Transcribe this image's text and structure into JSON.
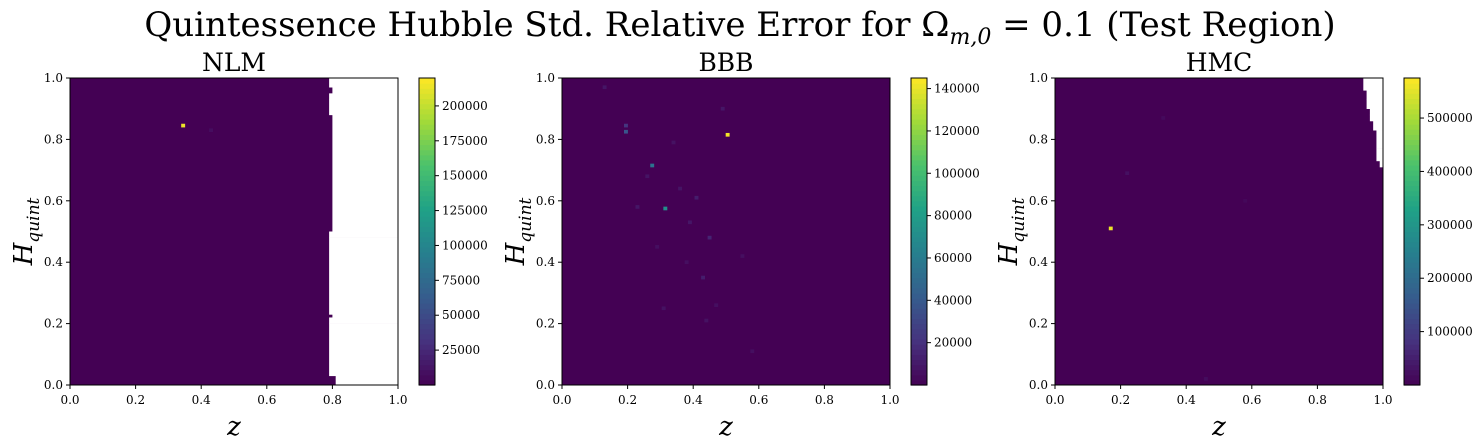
{
  "figure": {
    "title": "Quintessence Hubble Std. Relative Error for Ω",
    "title_sub": "m,0",
    "title_tail": " = 0.1 (Test Region)"
  },
  "colormap": [
    "#440154",
    "#46327e",
    "#365c8d",
    "#277f8e",
    "#1fa187",
    "#4ac16d",
    "#a0da39",
    "#fde725"
  ],
  "chart_data": [
    {
      "type": "heatmap",
      "title": "NLM",
      "xlabel": "z",
      "ylabel": "H",
      "ylabel_sub": "quint",
      "xlim": [
        0,
        1
      ],
      "ylim": [
        0,
        1
      ],
      "x_ticks": [
        "0.0",
        "0.2",
        "0.4",
        "0.6",
        "0.8",
        "1.0"
      ],
      "y_ticks": [
        "0.0",
        "0.2",
        "0.4",
        "0.6",
        "0.8",
        "1.0"
      ],
      "colorbar": {
        "min": 0,
        "max": 220000,
        "ticks": [
          25000,
          50000,
          75000,
          100000,
          125000,
          150000,
          175000,
          200000
        ],
        "tick_labels": [
          "25000",
          "50000",
          "75000",
          "100000",
          "125000",
          "150000",
          "175000",
          "200000"
        ]
      },
      "background_value": 0,
      "nan_region": {
        "y": [
          0.0,
          0.02,
          0.03,
          0.2,
          0.22,
          0.23,
          0.48,
          0.5,
          0.88,
          0.93,
          0.95,
          0.97,
          1.0
        ],
        "x_start": [
          0.81,
          0.81,
          0.79,
          0.79,
          0.8,
          0.79,
          0.79,
          0.8,
          0.79,
          0.79,
          0.8,
          0.79,
          0.79
        ]
      },
      "hotspots": [
        {
          "x": 0.345,
          "y": 0.845,
          "value": 215000
        },
        {
          "x": 0.43,
          "y": 0.83,
          "value": 8000
        }
      ]
    },
    {
      "type": "heatmap",
      "title": "BBB",
      "xlabel": "z",
      "ylabel": "H",
      "ylabel_sub": "quint",
      "xlim": [
        0,
        1
      ],
      "ylim": [
        0,
        1
      ],
      "x_ticks": [
        "0.0",
        "0.2",
        "0.4",
        "0.6",
        "0.8",
        "1.0"
      ],
      "y_ticks": [
        "0.0",
        "0.2",
        "0.4",
        "0.6",
        "0.8",
        "1.0"
      ],
      "colorbar": {
        "min": 0,
        "max": 145000,
        "ticks": [
          20000,
          40000,
          60000,
          80000,
          100000,
          120000,
          140000
        ],
        "tick_labels": [
          "20000",
          "40000",
          "60000",
          "80000",
          "100000",
          "120000",
          "140000"
        ]
      },
      "background_value": 0,
      "hotspots": [
        {
          "x": 0.505,
          "y": 0.815,
          "value": 143000
        },
        {
          "x": 0.315,
          "y": 0.575,
          "value": 72000
        },
        {
          "x": 0.275,
          "y": 0.715,
          "value": 55000
        },
        {
          "x": 0.195,
          "y": 0.825,
          "value": 38000
        },
        {
          "x": 0.195,
          "y": 0.845,
          "value": 22000
        },
        {
          "x": 0.41,
          "y": 0.61,
          "value": 12000
        },
        {
          "x": 0.45,
          "y": 0.48,
          "value": 15000
        },
        {
          "x": 0.43,
          "y": 0.35,
          "value": 12000
        },
        {
          "x": 0.39,
          "y": 0.53,
          "value": 9000
        },
        {
          "x": 0.23,
          "y": 0.58,
          "value": 9000
        },
        {
          "x": 0.36,
          "y": 0.64,
          "value": 8000
        },
        {
          "x": 0.13,
          "y": 0.97,
          "value": 9000
        },
        {
          "x": 0.26,
          "y": 0.68,
          "value": 8000
        },
        {
          "x": 0.31,
          "y": 0.25,
          "value": 7000
        },
        {
          "x": 0.44,
          "y": 0.21,
          "value": 7000
        },
        {
          "x": 0.49,
          "y": 0.9,
          "value": 9000
        },
        {
          "x": 0.55,
          "y": 0.42,
          "value": 6000
        },
        {
          "x": 0.58,
          "y": 0.11,
          "value": 6000
        },
        {
          "x": 0.34,
          "y": 0.79,
          "value": 7000
        },
        {
          "x": 0.47,
          "y": 0.26,
          "value": 6000
        },
        {
          "x": 0.29,
          "y": 0.45,
          "value": 6000
        },
        {
          "x": 0.38,
          "y": 0.4,
          "value": 6000
        }
      ]
    },
    {
      "type": "heatmap",
      "title": "HMC",
      "xlabel": "z",
      "ylabel": "H",
      "ylabel_sub": "quint",
      "xlim": [
        0,
        1
      ],
      "ylim": [
        0,
        1
      ],
      "x_ticks": [
        "0.0",
        "0.2",
        "0.4",
        "0.6",
        "0.8",
        "1.0"
      ],
      "y_ticks": [
        "0.0",
        "0.2",
        "0.4",
        "0.6",
        "0.8",
        "1.0"
      ],
      "colorbar": {
        "min": 0,
        "max": 575000,
        "ticks": [
          100000,
          200000,
          300000,
          400000,
          500000
        ],
        "tick_labels": [
          "100000",
          "200000",
          "300000",
          "400000",
          "500000"
        ]
      },
      "background_value": 0,
      "nan_region": {
        "y": [
          0.71,
          0.73,
          0.77,
          0.83,
          0.86,
          0.88,
          0.9,
          0.93,
          0.96,
          1.0
        ],
        "x_start": [
          0.99,
          0.98,
          0.98,
          0.97,
          0.96,
          0.96,
          0.95,
          0.95,
          0.94,
          0.94
        ]
      },
      "hotspots": [
        {
          "x": 0.17,
          "y": 0.51,
          "value": 560000
        },
        {
          "x": 0.22,
          "y": 0.69,
          "value": 25000
        },
        {
          "x": 0.46,
          "y": 0.02,
          "value": 20000
        },
        {
          "x": 0.33,
          "y": 0.87,
          "value": 15000
        },
        {
          "x": 0.58,
          "y": 0.6,
          "value": 12000
        }
      ]
    }
  ]
}
